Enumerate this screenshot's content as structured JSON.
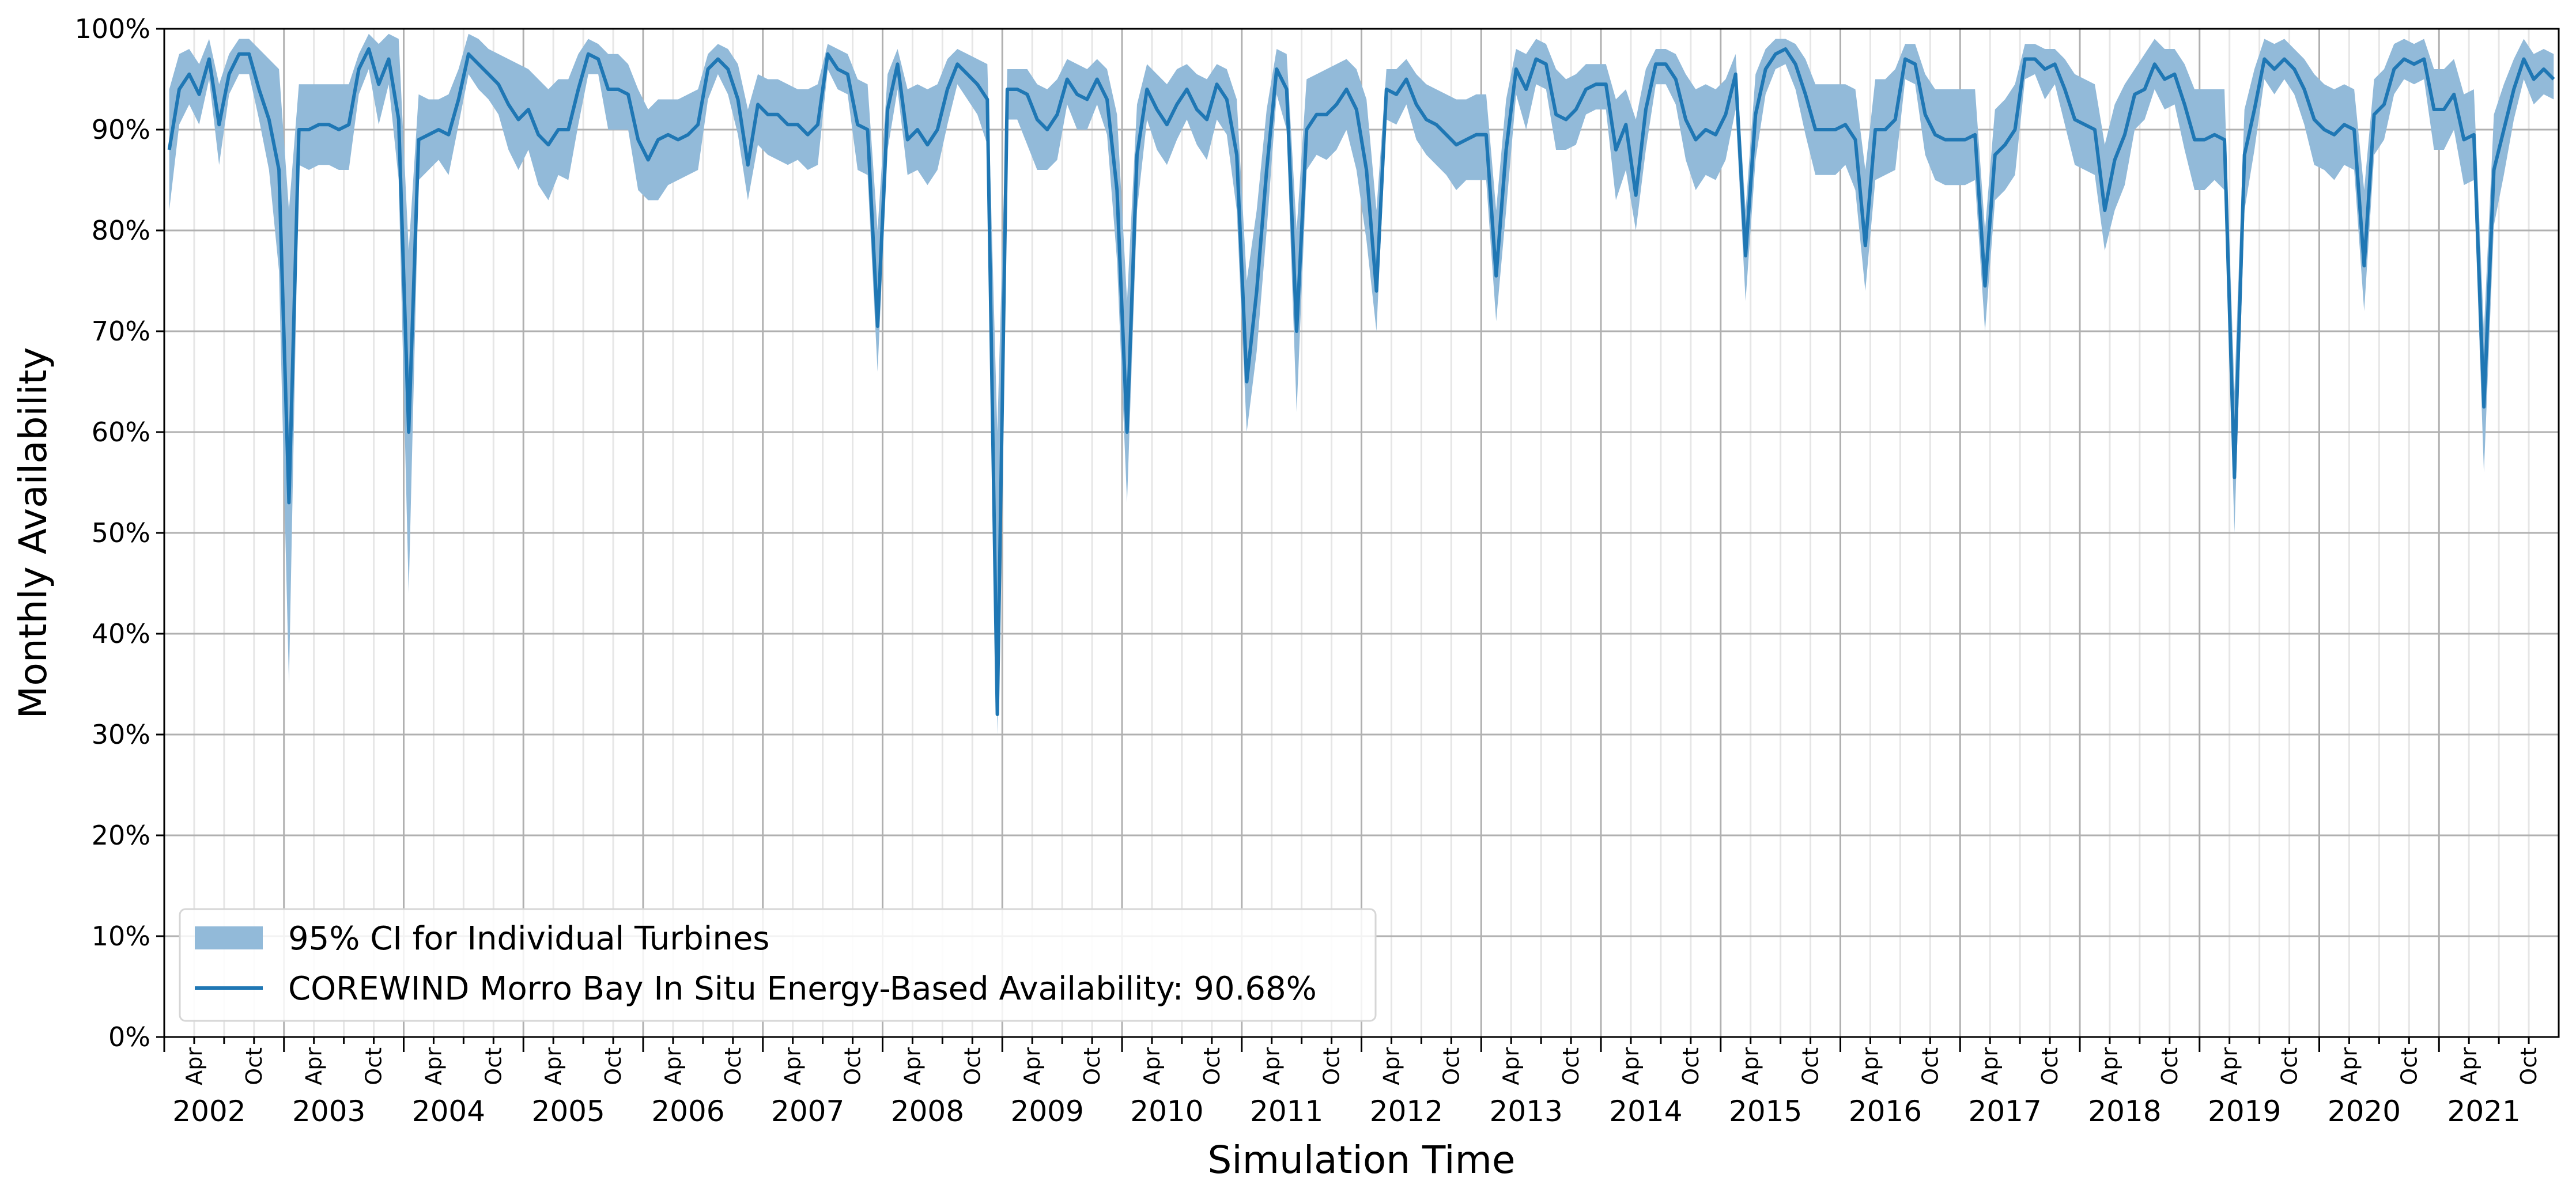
{
  "chart_data": {
    "type": "line",
    "title": "",
    "xlabel": "Simulation Time",
    "ylabel": "Monthly Availability",
    "ylim": [
      0,
      100
    ],
    "yticks": [
      0,
      10,
      20,
      30,
      40,
      50,
      60,
      70,
      80,
      90,
      100
    ],
    "ytick_suffix": "%",
    "x_start": "2002-01",
    "x_end": "2021-12",
    "years": [
      "2002",
      "2003",
      "2004",
      "2005",
      "2006",
      "2007",
      "2008",
      "2009",
      "2010",
      "2011",
      "2012",
      "2013",
      "2014",
      "2015",
      "2016",
      "2017",
      "2018",
      "2019",
      "2020",
      "2021"
    ],
    "month_ticks": [
      "Apr",
      "Oct"
    ],
    "grid": true,
    "legend_position": "lower-left",
    "legend": [
      {
        "type": "band",
        "label": "95% CI for Individual Turbines"
      },
      {
        "type": "line",
        "label": "COREWIND Morro Bay In Situ Energy-Based Availability: 90.68%"
      }
    ],
    "colors": {
      "line": "#1f77b4",
      "band": "#92bad9"
    },
    "series": [
      {
        "name": "COREWIND Morro Bay In Situ Energy-Based Availability: 90.68%",
        "values": [
          88,
          94,
          95.5,
          93.5,
          97,
          90.5,
          95.5,
          97.5,
          97.5,
          94,
          91,
          86,
          53,
          90,
          90,
          90.5,
          90.5,
          90,
          90.5,
          96,
          98,
          94.5,
          97,
          91,
          60,
          89,
          89.5,
          90,
          89.5,
          93,
          97.5,
          96.5,
          95.5,
          94.5,
          92.5,
          91,
          92,
          89.5,
          88.5,
          90,
          90,
          94,
          97.5,
          97,
          94,
          94,
          93.5,
          89,
          87,
          89,
          89.5,
          89,
          89.5,
          90.5,
          96,
          97,
          96,
          93,
          86.5,
          92.5,
          91.5,
          91.5,
          90.5,
          90.5,
          89.5,
          90.5,
          97.5,
          96,
          95.5,
          90.5,
          90,
          70.5,
          92,
          96.5,
          89,
          90,
          88.5,
          90,
          94,
          96.5,
          95.5,
          94.5,
          93,
          32,
          94,
          94,
          93.5,
          91,
          90,
          91.5,
          95,
          93.5,
          93,
          95,
          93,
          84,
          60,
          87.5,
          94,
          92,
          90.5,
          92.5,
          94,
          92,
          91,
          94.5,
          93,
          87.5,
          65,
          74,
          86,
          96,
          94,
          70,
          90,
          91.5,
          91.5,
          92.5,
          94,
          92,
          86,
          74,
          94,
          93.5,
          95,
          92.5,
          91,
          90.5,
          89.5,
          88.5,
          89,
          89.5,
          89.5,
          75.5,
          88,
          96,
          94,
          97,
          96.5,
          91.5,
          91,
          92,
          94,
          94.5,
          94.5,
          88,
          90.5,
          83.5,
          92,
          96.5,
          96.5,
          95,
          91,
          89,
          90,
          89.5,
          91.5,
          95.5,
          77.5,
          91.5,
          96,
          97.5,
          98,
          96.5,
          93.5,
          90,
          90,
          90,
          90.5,
          89,
          78.5,
          90,
          90,
          91,
          97,
          96.5,
          91.5,
          89.5,
          89,
          89,
          89,
          89.5,
          74.5,
          87.5,
          88.5,
          90,
          97,
          97,
          96,
          96.5,
          94,
          91,
          90.5,
          90,
          82,
          87,
          89.5,
          93.5,
          94,
          96.5,
          95,
          95.5,
          92.5,
          89,
          89,
          89.5,
          89,
          55.5,
          87.5,
          92,
          97,
          96,
          97,
          96,
          94,
          91,
          90,
          89.5,
          90.5,
          90,
          76.5,
          91.5,
          92.5,
          96,
          97,
          96.5,
          97,
          92,
          92,
          93.5,
          89,
          89.5,
          62.5,
          86,
          90,
          94,
          97,
          95,
          96,
          95
        ]
      }
    ],
    "ci_band": {
      "name": "95% CI for Individual Turbines",
      "upper": [
        94,
        97.5,
        98,
        96.5,
        99,
        94.5,
        97.5,
        99,
        99,
        98,
        97,
        96,
        82,
        94.5,
        94.5,
        94.5,
        94.5,
        94.5,
        94.5,
        97.5,
        99.5,
        98.5,
        99.5,
        99,
        78,
        93.5,
        93,
        93,
        93.5,
        96,
        99.5,
        99,
        98,
        97.5,
        97,
        96.5,
        96,
        95,
        94,
        95,
        95,
        97.5,
        99,
        98.5,
        97.5,
        97.5,
        96.5,
        94,
        92,
        93,
        93,
        93,
        93.5,
        94,
        97.5,
        98.5,
        98,
        96.5,
        92,
        95.5,
        95,
        95,
        94.5,
        94,
        94,
        94.5,
        98.5,
        98,
        97.5,
        95,
        94.5,
        80,
        95.5,
        98,
        94,
        94.5,
        94,
        94.5,
        97,
        98,
        97.5,
        97,
        96.5,
        60,
        96,
        96,
        96,
        94.5,
        94,
        95,
        97,
        96.5,
        96,
        97,
        96,
        91.5,
        73,
        92.5,
        96.5,
        95.5,
        94.5,
        96,
        96.5,
        95.5,
        95,
        96.5,
        96,
        93,
        75,
        82,
        92,
        98,
        97.5,
        80,
        95,
        95.5,
        96,
        96.5,
        97,
        96,
        93,
        82,
        96,
        96,
        97,
        95.5,
        94.5,
        94,
        93.5,
        93,
        93,
        93.5,
        93.5,
        82,
        93,
        98,
        97.5,
        99,
        98.5,
        96,
        95,
        95.5,
        96.5,
        96.5,
        96.5,
        93,
        94,
        91,
        96,
        98,
        98,
        97.5,
        95.5,
        94,
        94.5,
        94,
        95,
        97.5,
        82,
        95.5,
        98,
        99,
        99,
        98.5,
        97,
        94.5,
        94.5,
        94.5,
        94.5,
        94,
        86,
        95,
        95,
        96,
        98.5,
        98.5,
        95.5,
        94,
        94,
        94,
        94,
        94,
        80,
        92,
        93,
        94.5,
        98.5,
        98.5,
        98,
        98,
        97,
        95.5,
        95,
        94.5,
        88.5,
        92.5,
        94.5,
        96,
        97.5,
        99,
        98,
        98,
        96.5,
        94,
        94,
        94,
        94,
        64,
        92,
        96,
        99,
        98.5,
        99,
        98,
        97,
        95.5,
        94.5,
        94,
        94.5,
        94,
        84,
        95,
        96,
        98.5,
        99,
        98.5,
        99,
        96,
        96,
        97,
        93.5,
        94,
        70,
        91.5,
        94.5,
        97,
        99,
        97.5,
        98,
        97.5
      ],
      "lower": [
        82,
        90.5,
        92.5,
        90.5,
        95,
        86.5,
        93.5,
        95.5,
        95.5,
        91,
        86,
        76,
        35,
        86.5,
        86,
        86.5,
        86.5,
        86,
        86,
        93.5,
        96,
        90.5,
        94.5,
        85,
        44,
        85,
        86,
        87,
        85.5,
        90.5,
        95.5,
        94,
        93,
        91.5,
        88,
        86,
        88,
        84.5,
        83,
        85.5,
        85,
        90.5,
        95.5,
        95.5,
        90,
        90,
        90,
        84,
        83,
        83,
        84.5,
        85,
        85.5,
        86,
        93,
        95.5,
        93.5,
        89.5,
        83,
        88.5,
        87.5,
        87,
        86.5,
        87,
        86,
        86.5,
        96,
        94,
        93.5,
        86,
        85.5,
        66,
        88,
        94,
        85.5,
        86,
        84.5,
        86,
        90.5,
        94.5,
        93,
        91.5,
        88.5,
        30,
        91,
        91,
        88.5,
        86,
        86,
        87,
        92.5,
        90,
        90,
        92.5,
        89.5,
        77,
        53,
        82,
        91,
        88,
        86.5,
        89,
        91,
        88.5,
        87,
        91,
        89.5,
        82,
        60,
        68,
        80,
        93.5,
        90,
        62,
        86,
        87.5,
        87,
        88,
        90,
        86,
        79,
        70,
        91,
        90.5,
        92.5,
        89,
        87.5,
        86.5,
        85.5,
        84,
        85,
        85,
        85,
        71,
        82,
        93.5,
        90,
        94.5,
        94,
        88,
        88,
        88.5,
        91.5,
        92,
        92,
        83,
        86,
        80,
        88,
        94.5,
        94.5,
        92.5,
        87,
        84,
        85.5,
        85,
        87,
        92,
        73,
        87,
        93.5,
        96,
        96.5,
        94,
        89.5,
        85.5,
        85.5,
        85.5,
        86.5,
        84,
        74,
        85,
        85.5,
        86,
        95,
        94.5,
        87.5,
        85,
        84.5,
        84.5,
        84.5,
        85,
        70,
        83,
        84,
        85.5,
        95,
        95.5,
        93,
        94.5,
        90.5,
        86.5,
        86,
        85.5,
        78,
        82,
        84.5,
        90,
        91,
        94,
        92,
        92.5,
        88,
        84,
        84,
        85,
        84,
        50,
        82,
        88,
        95,
        93.5,
        95,
        93.5,
        90.5,
        86.5,
        86,
        85,
        86.5,
        86,
        72,
        87.5,
        89,
        93.5,
        95,
        94.5,
        95,
        88,
        88,
        90,
        84.5,
        85,
        56,
        80.5,
        85.5,
        91,
        95,
        92.5,
        93.5,
        93
      ]
    }
  }
}
